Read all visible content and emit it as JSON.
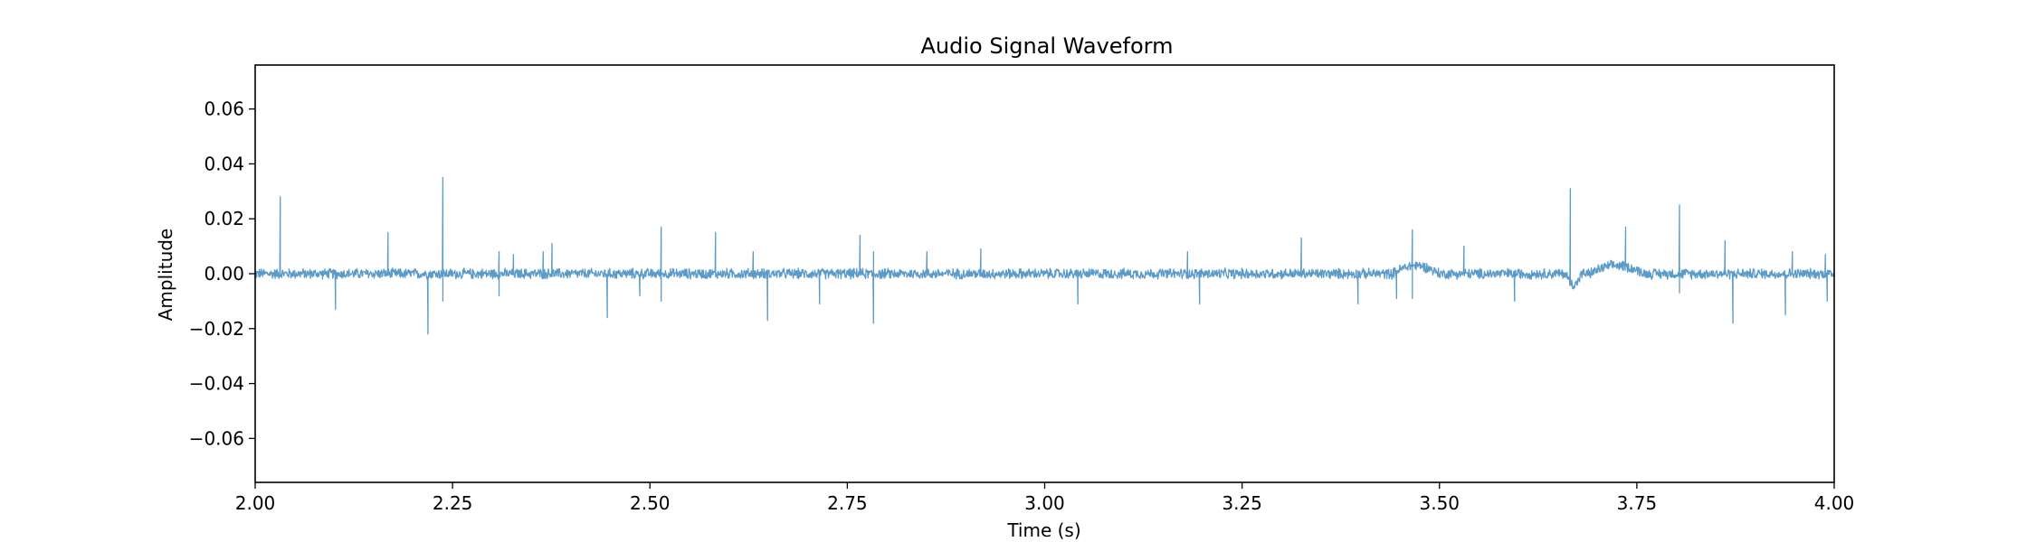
{
  "chart_data": {
    "type": "line",
    "title": "Audio Signal Waveform",
    "xlabel": "Time (s)",
    "ylabel": "Amplitude",
    "xlim": [
      2.0,
      4.0
    ],
    "ylim": [
      -0.076,
      0.076
    ],
    "xticks": [
      2.0,
      2.25,
      2.5,
      2.75,
      3.0,
      3.25,
      3.5,
      3.75,
      4.0
    ],
    "xtick_labels": [
      "2.00",
      "2.25",
      "2.50",
      "2.75",
      "3.00",
      "3.25",
      "3.50",
      "3.75",
      "4.00"
    ],
    "yticks": [
      0.06,
      0.04,
      0.02,
      0.0,
      -0.02,
      -0.04,
      -0.06
    ],
    "ytick_labels": [
      "0.06",
      "0.04",
      "0.02",
      "0.00",
      "−0.02",
      "−0.04",
      "−0.06"
    ],
    "grid": false,
    "line_color": "#5b9bc8",
    "noise_amplitude": 0.0018,
    "spikes": [
      {
        "t": 2.032,
        "v": 0.028
      },
      {
        "t": 2.102,
        "v": -0.013
      },
      {
        "t": 2.168,
        "v": 0.015
      },
      {
        "t": 2.219,
        "v": -0.022
      },
      {
        "t": 2.238,
        "v": 0.035
      },
      {
        "t": 2.238,
        "v": -0.01
      },
      {
        "t": 2.309,
        "v": 0.008
      },
      {
        "t": 2.309,
        "v": -0.008
      },
      {
        "t": 2.327,
        "v": 0.007
      },
      {
        "t": 2.365,
        "v": 0.008
      },
      {
        "t": 2.376,
        "v": 0.011
      },
      {
        "t": 2.446,
        "v": -0.016
      },
      {
        "t": 2.487,
        "v": -0.008
      },
      {
        "t": 2.514,
        "v": 0.017
      },
      {
        "t": 2.514,
        "v": -0.01
      },
      {
        "t": 2.583,
        "v": 0.015
      },
      {
        "t": 2.631,
        "v": 0.008
      },
      {
        "t": 2.649,
        "v": -0.017
      },
      {
        "t": 2.715,
        "v": -0.011
      },
      {
        "t": 2.766,
        "v": 0.014
      },
      {
        "t": 2.783,
        "v": -0.018
      },
      {
        "t": 2.783,
        "v": 0.008
      },
      {
        "t": 2.851,
        "v": 0.008
      },
      {
        "t": 2.919,
        "v": 0.009
      },
      {
        "t": 3.042,
        "v": -0.011
      },
      {
        "t": 3.181,
        "v": 0.008
      },
      {
        "t": 3.196,
        "v": -0.011
      },
      {
        "t": 3.325,
        "v": 0.013
      },
      {
        "t": 3.397,
        "v": -0.011
      },
      {
        "t": 3.446,
        "v": -0.009
      },
      {
        "t": 3.466,
        "v": 0.016
      },
      {
        "t": 3.466,
        "v": -0.009
      },
      {
        "t": 3.531,
        "v": 0.01
      },
      {
        "t": 3.595,
        "v": -0.01
      },
      {
        "t": 3.666,
        "v": 0.031
      },
      {
        "t": 3.736,
        "v": 0.017
      },
      {
        "t": 3.804,
        "v": 0.025
      },
      {
        "t": 3.804,
        "v": -0.007
      },
      {
        "t": 3.862,
        "v": 0.012
      },
      {
        "t": 3.872,
        "v": -0.018
      },
      {
        "t": 3.938,
        "v": -0.015
      },
      {
        "t": 3.947,
        "v": 0.008
      },
      {
        "t": 3.989,
        "v": 0.007
      },
      {
        "t": 3.991,
        "v": -0.01
      }
    ],
    "drift": [
      {
        "t_start": 3.44,
        "t_end": 3.5,
        "v": 0.003
      },
      {
        "t_start": 3.66,
        "t_end": 3.68,
        "v": -0.004
      },
      {
        "t_start": 3.69,
        "t_end": 3.76,
        "v": 0.003
      }
    ]
  }
}
